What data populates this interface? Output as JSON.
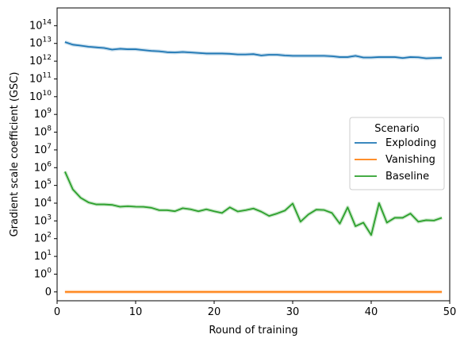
{
  "chart_data": {
    "type": "line",
    "title": "",
    "xlabel": "Round of training",
    "ylabel": "Gradient scale coefficient (GSC)",
    "xlim": [
      0,
      50
    ],
    "y_scale": "symlog",
    "ylim": [
      -0.5,
      1000000000000000.0
    ],
    "x_ticks": [
      0,
      10,
      20,
      30,
      40,
      50
    ],
    "x_tick_labels": [
      "0",
      "10",
      "20",
      "30",
      "40",
      "50"
    ],
    "y_ticks": [
      0,
      1,
      10,
      100,
      1000,
      10000,
      100000,
      1000000,
      10000000,
      100000000,
      1000000000,
      10000000000,
      100000000000,
      1000000000000,
      10000000000000,
      100000000000000
    ],
    "y_tick_labels": [
      {
        "base": "0",
        "exp": ""
      },
      {
        "base": "10",
        "exp": "0"
      },
      {
        "base": "10",
        "exp": "1"
      },
      {
        "base": "10",
        "exp": "2"
      },
      {
        "base": "10",
        "exp": "3"
      },
      {
        "base": "10",
        "exp": "4"
      },
      {
        "base": "10",
        "exp": "5"
      },
      {
        "base": "10",
        "exp": "6"
      },
      {
        "base": "10",
        "exp": "7"
      },
      {
        "base": "10",
        "exp": "8"
      },
      {
        "base": "10",
        "exp": "9"
      },
      {
        "base": "10",
        "exp": "10"
      },
      {
        "base": "10",
        "exp": "11"
      },
      {
        "base": "10",
        "exp": "12"
      },
      {
        "base": "10",
        "exp": "13"
      },
      {
        "base": "10",
        "exp": "14"
      }
    ],
    "grid": false,
    "legend": {
      "title": "Scenario",
      "placement": "center-right"
    },
    "series": [
      {
        "name": "Exploding",
        "color": "#1f77b4",
        "x": [
          1,
          2,
          3,
          4,
          5,
          6,
          7,
          8,
          9,
          10,
          11,
          12,
          13,
          14,
          15,
          16,
          17,
          18,
          19,
          20,
          21,
          22,
          23,
          24,
          25,
          26,
          27,
          28,
          29,
          30,
          31,
          32,
          33,
          34,
          35,
          36,
          37,
          38,
          39,
          40,
          41,
          42,
          43,
          44,
          45,
          46,
          47,
          48,
          49
        ],
        "y": [
          12000000000000.0,
          8500000000000.0,
          7500000000000.0,
          6500000000000.0,
          6000000000000.0,
          5500000000000.0,
          4500000000000.0,
          5000000000000.0,
          4700000000000.0,
          4700000000000.0,
          4200000000000.0,
          3800000000000.0,
          3600000000000.0,
          3200000000000.0,
          3100000000000.0,
          3300000000000.0,
          3100000000000.0,
          2900000000000.0,
          2700000000000.0,
          2700000000000.0,
          2700000000000.0,
          2600000000000.0,
          2400000000000.0,
          2400000000000.0,
          2500000000000.0,
          2100000000000.0,
          2300000000000.0,
          2300000000000.0,
          2100000000000.0,
          2000000000000.0,
          2000000000000.0,
          2000000000000.0,
          2000000000000.0,
          2000000000000.0,
          1900000000000.0,
          1700000000000.0,
          1700000000000.0,
          2000000000000.0,
          1600000000000.0,
          1600000000000.0,
          1700000000000.0,
          1700000000000.0,
          1700000000000.0,
          1500000000000.0,
          1700000000000.0,
          1650000000000.0,
          1450000000000.0,
          1500000000000.0,
          1550000000000.0
        ]
      },
      {
        "name": "Vanishing",
        "color": "#ff7f0e",
        "x": [
          1,
          49
        ],
        "y": [
          0,
          0
        ]
      },
      {
        "name": "Baseline",
        "color": "#2ca02c",
        "x": [
          1,
          2,
          3,
          4,
          5,
          6,
          7,
          8,
          9,
          10,
          11,
          12,
          13,
          14,
          15,
          16,
          17,
          18,
          19,
          20,
          21,
          22,
          23,
          24,
          25,
          26,
          27,
          28,
          29,
          30,
          31,
          32,
          33,
          34,
          35,
          36,
          37,
          38,
          39,
          40,
          41,
          42,
          43,
          44,
          45,
          46,
          47,
          48,
          49
        ],
        "y": [
          600000,
          60000,
          20000,
          11000,
          8500,
          8500,
          8000,
          6300,
          6700,
          6300,
          6200,
          5500,
          4000,
          4000,
          3500,
          5200,
          4500,
          3500,
          4500,
          3500,
          2800,
          5800,
          3400,
          4000,
          5000,
          3300,
          1900,
          2600,
          3800,
          9500,
          900,
          2300,
          4300,
          4100,
          2800,
          700,
          5800,
          500,
          800,
          160,
          10000,
          800,
          1500,
          1500,
          2600,
          900,
          1100,
          1050,
          1500
        ]
      }
    ]
  }
}
